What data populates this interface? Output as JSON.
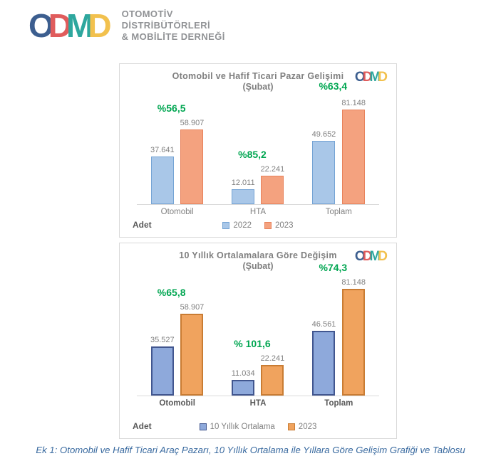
{
  "header": {
    "logo_letters": [
      {
        "char": "O",
        "color": "#3C5E8F"
      },
      {
        "char": "D",
        "color": "#E05C5C"
      },
      {
        "char": "M",
        "color": "#2EA79E"
      },
      {
        "char": "D",
        "color": "#F2C14E"
      }
    ],
    "org_lines": [
      "OTOMOTİV",
      "DİSTRİBÜTÖRLERİ",
      "& MOBİLİTE DERNEĞİ"
    ]
  },
  "chart_data": [
    {
      "type": "bar",
      "title": "Otomobil ve Hafif Ticari Pazar Gelişimi",
      "subtitle": "(Şubat)",
      "unit_label": "Adet",
      "categories": [
        "Otomobil",
        "HTA",
        "Toplam"
      ],
      "series": [
        {
          "name": "2022",
          "values": [
            37641,
            12011,
            49652
          ]
        },
        {
          "name": "2023",
          "values": [
            58907,
            22241,
            81148
          ]
        }
      ],
      "value_labels": [
        [
          "37.641",
          "12.011",
          "49.652"
        ],
        [
          "58.907",
          "22.241",
          "81.148"
        ]
      ],
      "percent_labels": [
        "%56,5",
        "%85,2",
        "%63,4"
      ],
      "percent_color": "#00A651",
      "series_colors": [
        {
          "fill": "#A9C7E8",
          "border": "#74A3D4",
          "border_width": 1
        },
        {
          "fill": "#F4A27F",
          "border": "#E8825B",
          "border_width": 1
        }
      ],
      "ylim": [
        0,
        85000
      ],
      "grid": false,
      "legend_position": "bottom"
    },
    {
      "type": "bar",
      "title": "10 Yıllık Ortalamalara Göre Değişim",
      "subtitle": "(Şubat)",
      "unit_label": "Adet",
      "categories": [
        "Otomobil",
        "HTA",
        "Toplam"
      ],
      "series": [
        {
          "name": "10 Yıllık Ortalama",
          "values": [
            35527,
            11034,
            46561
          ]
        },
        {
          "name": "2023",
          "values": [
            58907,
            22241,
            81148
          ]
        }
      ],
      "value_labels": [
        [
          "35.527",
          "11.034",
          "46.561"
        ],
        [
          "58.907",
          "22.241",
          "81.148"
        ]
      ],
      "percent_labels": [
        "%65,8",
        "% 101,6",
        "%74,3"
      ],
      "percent_color": "#00A651",
      "series_colors": [
        {
          "fill": "#8EA9DB",
          "border": "#41568F",
          "border_width": 2
        },
        {
          "fill": "#F0A35E",
          "border": "#C97C33",
          "border_width": 2
        }
      ],
      "ylim": [
        0,
        85000
      ],
      "grid": false,
      "legend_position": "bottom"
    }
  ],
  "caption": "Ek 1: Otomobil ve Hafif Ticari Araç Pazarı, 10 Yıllık Ortalama ile Yıllara Göre Gelişim Grafiği ve Tablosu"
}
